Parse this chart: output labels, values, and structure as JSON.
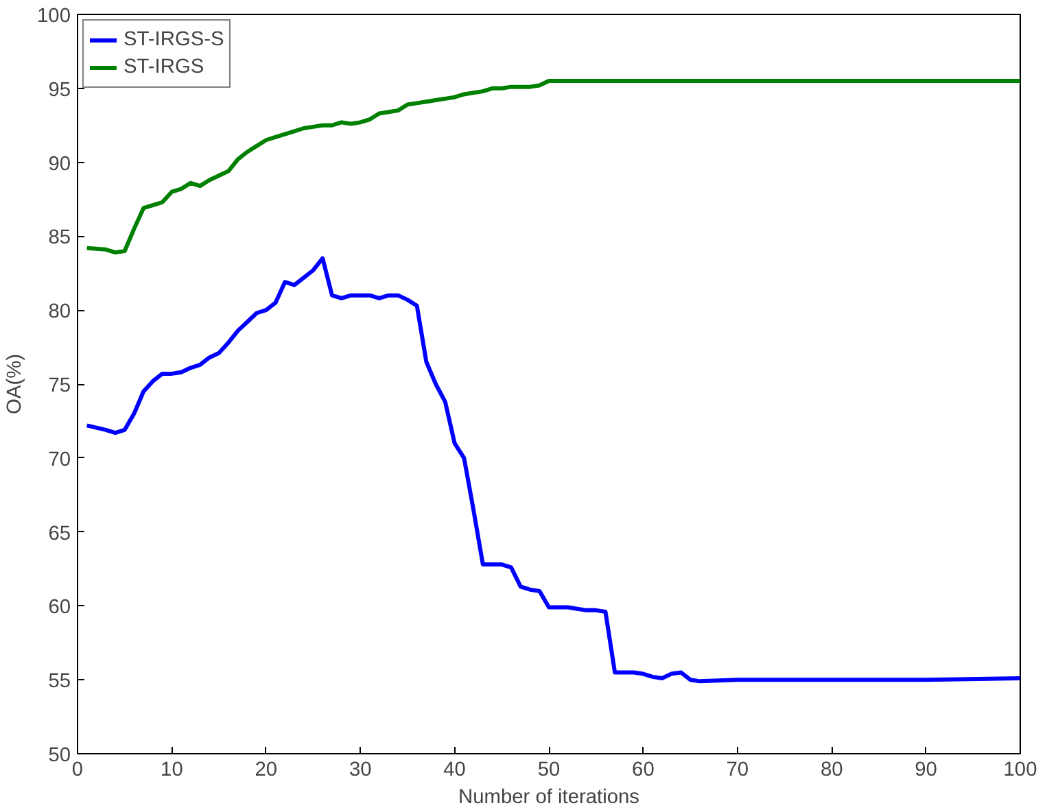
{
  "chart_data": {
    "type": "line",
    "xlabel": "Number of iterations",
    "ylabel": "OA(%)",
    "xlim": [
      0,
      100
    ],
    "xticks": [
      0,
      10,
      20,
      30,
      40,
      50,
      60,
      70,
      80,
      90,
      100
    ],
    "ylim": [
      50,
      100
    ],
    "yticks": [
      50,
      55,
      60,
      65,
      70,
      75,
      80,
      85,
      90,
      95,
      100
    ],
    "grid": false,
    "legend": "top left",
    "line_style": "solid",
    "series": [
      {
        "name": "ST-IRGS-S",
        "color": "#0000ff",
        "x": [
          1,
          3,
          4,
          5,
          6,
          7,
          8,
          9,
          10,
          11,
          12,
          13,
          14,
          15,
          16,
          17,
          18,
          19,
          20,
          21,
          22,
          23,
          24,
          25,
          26,
          27,
          28,
          29,
          30,
          31,
          32,
          33,
          34,
          35,
          36,
          37,
          38,
          39,
          40,
          41,
          42,
          43,
          44,
          45,
          46,
          47,
          48,
          49,
          50,
          51,
          52,
          53,
          54,
          55,
          56,
          57,
          58,
          59,
          60,
          61,
          62,
          63,
          64,
          65,
          66,
          70,
          80,
          90,
          100
        ],
        "values": [
          72.2,
          71.9,
          71.7,
          71.9,
          73,
          74.5,
          75.2,
          75.7,
          75.7,
          75.8,
          76.1,
          76.3,
          76.8,
          77.1,
          77.8,
          78.6,
          79.2,
          79.8,
          80,
          80.5,
          81.9,
          81.7,
          82.2,
          82.7,
          83.5,
          81,
          80.8,
          81,
          81,
          81,
          80.8,
          81,
          81,
          80.7,
          80.3,
          76.5,
          75,
          73.8,
          71,
          70,
          66.5,
          62.8,
          62.8,
          62.8,
          62.6,
          61.3,
          61.1,
          61,
          59.9,
          59.9,
          59.9,
          59.8,
          59.7,
          59.7,
          59.6,
          55.5,
          55.5,
          55.5,
          55.4,
          55.2,
          55.1,
          55.4,
          55.5,
          55,
          54.9,
          55,
          55,
          55,
          55.1
        ]
      },
      {
        "name": "ST-IRGS",
        "color": "#008000",
        "x": [
          1,
          3,
          4,
          5,
          6,
          7,
          8,
          9,
          10,
          11,
          12,
          13,
          14,
          15,
          16,
          17,
          18,
          19,
          20,
          21,
          22,
          23,
          24,
          25,
          26,
          27,
          28,
          29,
          30,
          31,
          32,
          33,
          34,
          35,
          36,
          37,
          38,
          39,
          40,
          41,
          42,
          43,
          44,
          45,
          46,
          47,
          48,
          49,
          50,
          60,
          70,
          80,
          100
        ],
        "values": [
          84.2,
          84.1,
          83.9,
          84,
          85.5,
          86.9,
          87.1,
          87.3,
          88,
          88.2,
          88.6,
          88.4,
          88.8,
          89.1,
          89.4,
          90.2,
          90.7,
          91.1,
          91.5,
          91.7,
          91.9,
          92.1,
          92.3,
          92.4,
          92.5,
          92.5,
          92.7,
          92.6,
          92.7,
          92.9,
          93.3,
          93.4,
          93.5,
          93.9,
          94,
          94.1,
          94.2,
          94.3,
          94.4,
          94.6,
          94.7,
          94.8,
          95,
          95,
          95.1,
          95.1,
          95.1,
          95.2,
          95.5,
          95.5,
          95.5,
          95.5,
          95.5
        ]
      }
    ]
  }
}
